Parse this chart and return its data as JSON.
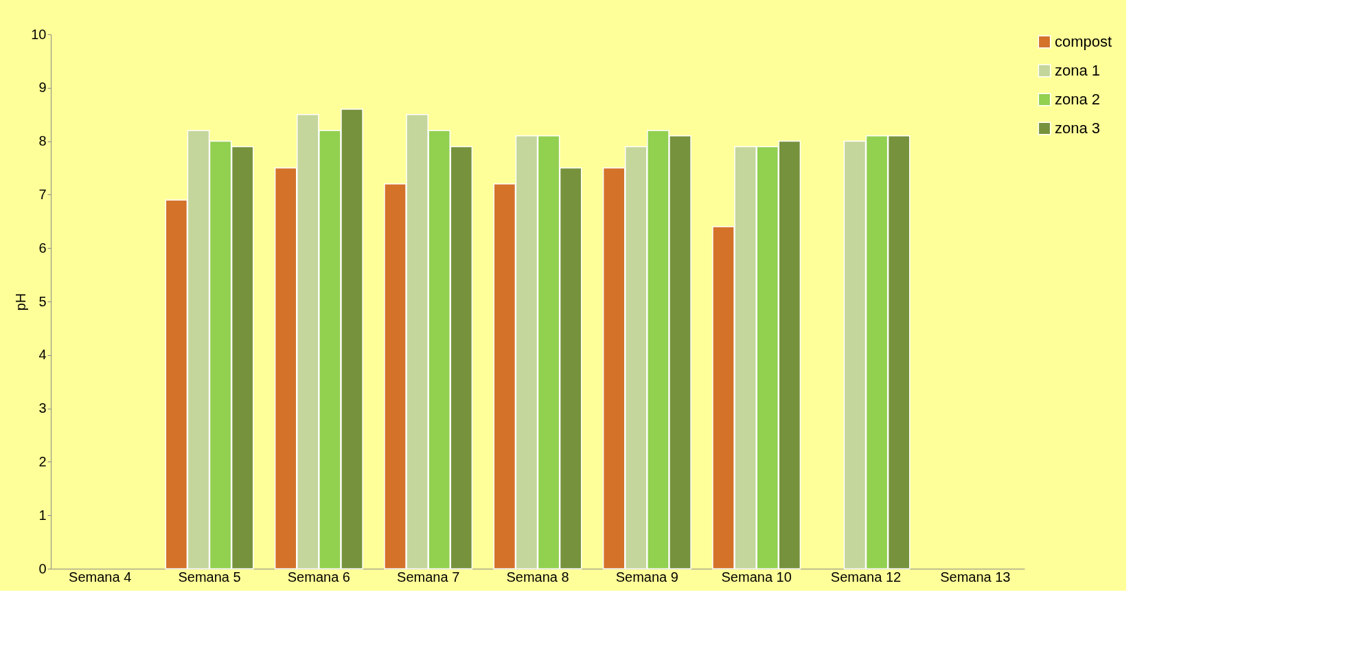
{
  "chart_data": {
    "type": "bar",
    "ylabel": "pH",
    "categories": [
      "Semana 4",
      "Semana 5",
      "Semana 6",
      "Semana 7",
      "Semana 8",
      "Semana 9",
      "Semana 10",
      "Semana 12",
      "Semana 13"
    ],
    "series": [
      {
        "name": "compost",
        "color": "#d4722a",
        "values": [
          null,
          6.9,
          7.5,
          7.2,
          7.2,
          7.5,
          6.4,
          null,
          null
        ]
      },
      {
        "name": "zona 1",
        "color": "#c4d69b",
        "values": [
          null,
          8.2,
          8.5,
          8.5,
          8.1,
          7.9,
          7.9,
          8.0,
          null
        ]
      },
      {
        "name": "zona 2",
        "color": "#92d050",
        "values": [
          null,
          8.0,
          8.2,
          8.2,
          8.1,
          8.2,
          7.9,
          8.1,
          null
        ]
      },
      {
        "name": "zona 3",
        "color": "#76923c",
        "values": [
          null,
          7.9,
          8.6,
          7.9,
          7.5,
          8.1,
          8.0,
          8.1,
          null
        ]
      }
    ],
    "ylim": [
      0,
      10
    ],
    "yticks": [
      0,
      1,
      2,
      3,
      4,
      5,
      6,
      7,
      8,
      9,
      10
    ],
    "grid": false,
    "legend": "right"
  }
}
